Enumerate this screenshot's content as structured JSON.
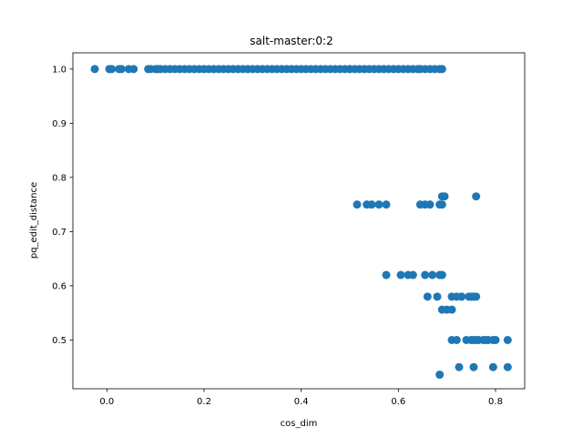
{
  "chart_data": {
    "type": "scatter",
    "title": "salt-master:0:2",
    "xlabel": "cos_dim",
    "ylabel": "pq_edit_distance",
    "xlim": [
      -0.07,
      0.86
    ],
    "ylim": [
      0.41,
      1.03
    ],
    "xticks": [
      0.0,
      0.2,
      0.4,
      0.6,
      0.8
    ],
    "xtick_labels": [
      "0.0",
      "0.2",
      "0.4",
      "0.6",
      "0.8"
    ],
    "yticks": [
      0.5,
      0.6,
      0.7,
      0.8,
      0.9,
      1.0
    ],
    "ytick_labels": [
      "0.5",
      "0.6",
      "0.7",
      "0.8",
      "0.9",
      "1.0"
    ],
    "marker_color": "#1f77b4",
    "grid": false,
    "legend": "none",
    "series": [
      {
        "points": [
          [
            -0.025,
            1.0
          ],
          [
            0.005,
            1.0
          ],
          [
            0.01,
            1.0
          ],
          [
            0.025,
            1.0
          ],
          [
            0.03,
            1.0
          ],
          [
            0.045,
            1.0
          ],
          [
            0.055,
            1.0
          ],
          [
            0.085,
            1.0
          ],
          [
            0.09,
            1.0
          ],
          [
            0.1,
            1.0
          ],
          [
            0.105,
            1.0
          ],
          [
            0.11,
            1.0
          ],
          [
            0.12,
            1.0
          ],
          [
            0.13,
            1.0
          ],
          [
            0.14,
            1.0
          ],
          [
            0.15,
            1.0
          ],
          [
            0.16,
            1.0
          ],
          [
            0.17,
            1.0
          ],
          [
            0.18,
            1.0
          ],
          [
            0.19,
            1.0
          ],
          [
            0.2,
            1.0
          ],
          [
            0.21,
            1.0
          ],
          [
            0.22,
            1.0
          ],
          [
            0.23,
            1.0
          ],
          [
            0.24,
            1.0
          ],
          [
            0.25,
            1.0
          ],
          [
            0.26,
            1.0
          ],
          [
            0.27,
            1.0
          ],
          [
            0.28,
            1.0
          ],
          [
            0.29,
            1.0
          ],
          [
            0.3,
            1.0
          ],
          [
            0.31,
            1.0
          ],
          [
            0.32,
            1.0
          ],
          [
            0.33,
            1.0
          ],
          [
            0.34,
            1.0
          ],
          [
            0.35,
            1.0
          ],
          [
            0.36,
            1.0
          ],
          [
            0.37,
            1.0
          ],
          [
            0.38,
            1.0
          ],
          [
            0.39,
            1.0
          ],
          [
            0.4,
            1.0
          ],
          [
            0.41,
            1.0
          ],
          [
            0.42,
            1.0
          ],
          [
            0.43,
            1.0
          ],
          [
            0.44,
            1.0
          ],
          [
            0.45,
            1.0
          ],
          [
            0.46,
            1.0
          ],
          [
            0.47,
            1.0
          ],
          [
            0.48,
            1.0
          ],
          [
            0.49,
            1.0
          ],
          [
            0.5,
            1.0
          ],
          [
            0.51,
            1.0
          ],
          [
            0.52,
            1.0
          ],
          [
            0.53,
            1.0
          ],
          [
            0.54,
            1.0
          ],
          [
            0.55,
            1.0
          ],
          [
            0.56,
            1.0
          ],
          [
            0.57,
            1.0
          ],
          [
            0.58,
            1.0
          ],
          [
            0.59,
            1.0
          ],
          [
            0.6,
            1.0
          ],
          [
            0.61,
            1.0
          ],
          [
            0.62,
            1.0
          ],
          [
            0.63,
            1.0
          ],
          [
            0.64,
            1.0
          ],
          [
            0.645,
            1.0
          ],
          [
            0.655,
            1.0
          ],
          [
            0.665,
            1.0
          ],
          [
            0.675,
            1.0
          ],
          [
            0.685,
            1.0
          ],
          [
            0.69,
            1.0
          ],
          [
            0.69,
            0.765
          ],
          [
            0.695,
            0.765
          ],
          [
            0.76,
            0.765
          ],
          [
            0.515,
            0.75
          ],
          [
            0.535,
            0.75
          ],
          [
            0.545,
            0.75
          ],
          [
            0.56,
            0.75
          ],
          [
            0.575,
            0.75
          ],
          [
            0.645,
            0.75
          ],
          [
            0.655,
            0.75
          ],
          [
            0.665,
            0.75
          ],
          [
            0.685,
            0.75
          ],
          [
            0.69,
            0.75
          ],
          [
            0.575,
            0.62
          ],
          [
            0.605,
            0.62
          ],
          [
            0.62,
            0.62
          ],
          [
            0.63,
            0.62
          ],
          [
            0.655,
            0.62
          ],
          [
            0.67,
            0.62
          ],
          [
            0.685,
            0.62
          ],
          [
            0.69,
            0.62
          ],
          [
            0.66,
            0.58
          ],
          [
            0.68,
            0.58
          ],
          [
            0.71,
            0.58
          ],
          [
            0.72,
            0.58
          ],
          [
            0.73,
            0.58
          ],
          [
            0.745,
            0.58
          ],
          [
            0.75,
            0.58
          ],
          [
            0.755,
            0.58
          ],
          [
            0.76,
            0.58
          ],
          [
            0.69,
            0.556
          ],
          [
            0.7,
            0.556
          ],
          [
            0.71,
            0.556
          ],
          [
            0.71,
            0.5
          ],
          [
            0.72,
            0.5
          ],
          [
            0.74,
            0.5
          ],
          [
            0.75,
            0.5
          ],
          [
            0.755,
            0.5
          ],
          [
            0.76,
            0.5
          ],
          [
            0.765,
            0.5
          ],
          [
            0.775,
            0.5
          ],
          [
            0.78,
            0.5
          ],
          [
            0.785,
            0.5
          ],
          [
            0.795,
            0.5
          ],
          [
            0.8,
            0.5
          ],
          [
            0.825,
            0.5
          ],
          [
            0.725,
            0.45
          ],
          [
            0.755,
            0.45
          ],
          [
            0.795,
            0.45
          ],
          [
            0.825,
            0.45
          ],
          [
            0.685,
            0.436
          ]
        ]
      }
    ]
  }
}
